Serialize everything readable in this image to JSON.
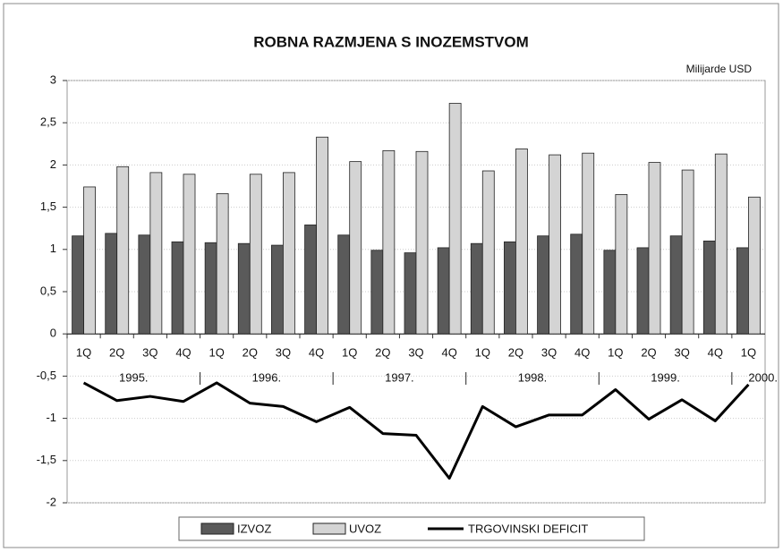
{
  "chart_data": {
    "type": "bar-line",
    "title": "ROBNA RAZMJENA S INOZEMSTVOM",
    "unit_label": "Milijarde USD",
    "categories": [
      "1Q",
      "2Q",
      "3Q",
      "4Q",
      "1Q",
      "2Q",
      "3Q",
      "4Q",
      "1Q",
      "2Q",
      "3Q",
      "4Q",
      "1Q",
      "2Q",
      "3Q",
      "4Q",
      "1Q",
      "2Q",
      "3Q",
      "4Q",
      "1Q"
    ],
    "year_labels": [
      "1995.",
      "1996.",
      "1997.",
      "1998.",
      "1999.",
      "2000."
    ],
    "series": [
      {
        "name": "IZVOZ",
        "type": "bar",
        "color": "#5a5a5a",
        "values": [
          1.16,
          1.19,
          1.17,
          1.09,
          1.08,
          1.07,
          1.05,
          1.29,
          1.17,
          0.99,
          0.96,
          1.02,
          1.07,
          1.09,
          1.16,
          1.18,
          0.99,
          1.02,
          1.16,
          1.1,
          1.02
        ]
      },
      {
        "name": "UVOZ",
        "type": "bar",
        "color": "#d4d4d4",
        "values": [
          1.74,
          1.98,
          1.91,
          1.89,
          1.66,
          1.89,
          1.91,
          2.33,
          2.04,
          2.17,
          2.16,
          2.73,
          1.93,
          2.19,
          2.12,
          2.14,
          1.65,
          2.03,
          1.94,
          2.13,
          1.62
        ]
      },
      {
        "name": "TRGOVINSKI DEFICIT",
        "type": "line",
        "color": "#000000",
        "values": [
          -0.58,
          -0.79,
          -0.74,
          -0.8,
          -0.58,
          -0.82,
          -0.86,
          -1.04,
          -0.87,
          -1.18,
          -1.2,
          -1.71,
          -0.86,
          -1.1,
          -0.96,
          -0.96,
          -0.66,
          -1.01,
          -0.78,
          -1.03,
          -0.6
        ]
      }
    ],
    "ylim": [
      -2,
      3
    ],
    "yticks": [
      -2,
      {
        "value": -1.5,
        "label": "-1,5"
      },
      -1,
      {
        "value": -0.5,
        "label": "-0,5"
      },
      0,
      {
        "value": 0.5,
        "label": "0,5"
      },
      1,
      {
        "value": 1.5,
        "label": "1,5"
      },
      2,
      {
        "value": 2.5,
        "label": "2,5"
      },
      3
    ],
    "grid": true,
    "legend": "bottom"
  }
}
